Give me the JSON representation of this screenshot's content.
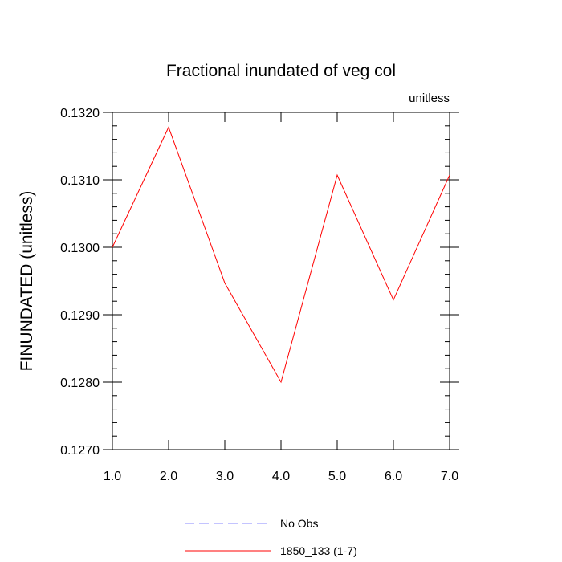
{
  "chart_data": {
    "type": "line",
    "title": "Fractional inundated of veg col",
    "units": "unitless",
    "xlabel": "",
    "ylabel": "FINUNDATED  (unitless)",
    "xlim": [
      1,
      7
    ],
    "ylim": [
      0.127,
      0.132
    ],
    "x_ticks": [
      "1.0",
      "2.0",
      "3.0",
      "4.0",
      "5.0",
      "6.0",
      "7.0"
    ],
    "y_ticks": [
      "0.1270",
      "0.1280",
      "0.1290",
      "0.1300",
      "0.1310",
      "0.1320"
    ],
    "grid": false,
    "legend_position": "bottom",
    "series": [
      {
        "name": "1850_133 (1-7)",
        "color": "#ff0000",
        "style": "solid",
        "x": [
          1,
          2,
          3,
          4,
          5,
          6,
          7
        ],
        "y": [
          0.13,
          0.13178,
          0.12947,
          0.128,
          0.13107,
          0.12922,
          0.13107
        ]
      }
    ],
    "legend": [
      {
        "label": "No Obs",
        "color": "#8a8aff",
        "style": "dashed"
      },
      {
        "label": "1850_133 (1-7)",
        "color": "#ff0000",
        "style": "solid"
      }
    ]
  }
}
